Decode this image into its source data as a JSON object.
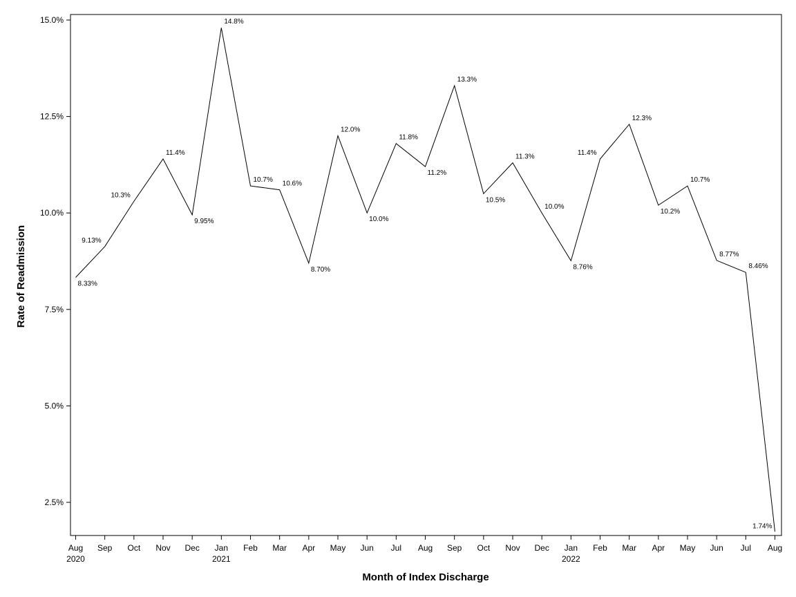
{
  "chart_data": {
    "type": "line",
    "title": "",
    "xlabel": "Month of Index Discharge",
    "ylabel": "Rate of Readmission",
    "ylim": [
      1.6,
      15.3
    ],
    "grid": false,
    "legend": "none",
    "y_ticks": [
      {
        "value": 2.5,
        "label": "2.5%"
      },
      {
        "value": 5.0,
        "label": "5.0%"
      },
      {
        "value": 7.5,
        "label": "7.5%"
      },
      {
        "value": 10.0,
        "label": "10.0%"
      },
      {
        "value": 12.5,
        "label": "12.5%"
      },
      {
        "value": 15.0,
        "label": "15.0%"
      }
    ],
    "categories": [
      "Aug",
      "Sep",
      "Oct",
      "Nov",
      "Dec",
      "Jan",
      "Feb",
      "Mar",
      "Apr",
      "May",
      "Jun",
      "Jul",
      "Aug",
      "Sep",
      "Oct",
      "Nov",
      "Dec",
      "Jan",
      "Feb",
      "Mar",
      "Apr",
      "May",
      "Jun",
      "Jul",
      "Aug"
    ],
    "year_labels": [
      "2020",
      "",
      "",
      "",
      "",
      "2021",
      "",
      "",
      "",
      "",
      "",
      "",
      "",
      "",
      "",
      "",
      "",
      "2022",
      "",
      "",
      "",
      "",
      "",
      "",
      ""
    ],
    "series": [
      {
        "name": "Rate of Readmission",
        "color": "#000000",
        "values": [
          8.33,
          9.13,
          10.3,
          11.4,
          9.95,
          14.8,
          10.7,
          10.6,
          8.7,
          12.0,
          10.0,
          11.8,
          11.2,
          13.3,
          10.5,
          11.3,
          10.0,
          8.76,
          11.4,
          12.3,
          10.2,
          10.7,
          8.77,
          8.46,
          1.74
        ],
        "data_labels": [
          "8.33%",
          "9.13%",
          "10.3%",
          "11.4%",
          "9.95%",
          "14.8%",
          "10.7%",
          "10.6%",
          "8.70%",
          "12.0%",
          "10.0%",
          "11.8%",
          "11.2%",
          "13.3%",
          "10.5%",
          "11.3%",
          "10.0%",
          "8.76%",
          "11.4%",
          "12.3%",
          "10.2%",
          "10.7%",
          "8.77%",
          "8.46%",
          "1.74%"
        ]
      }
    ]
  }
}
